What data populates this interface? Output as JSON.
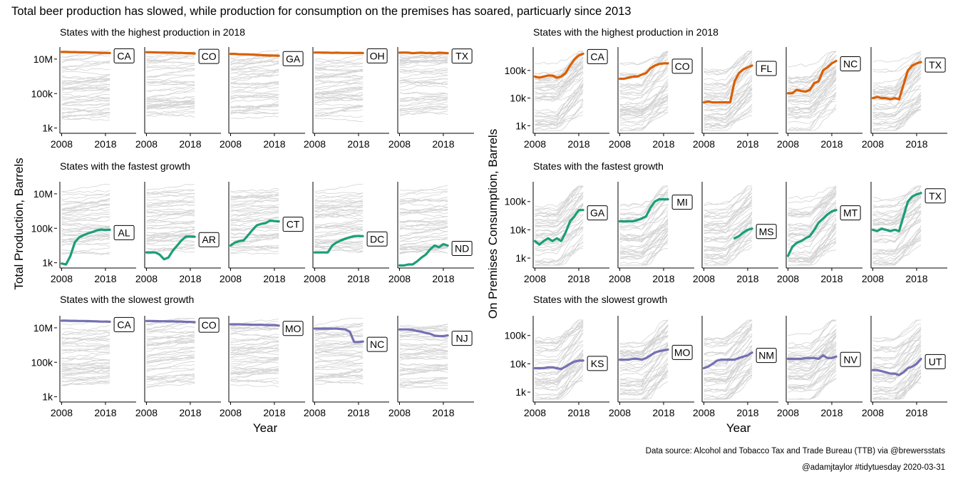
{
  "title": "Total beer production has slowed, while production for consumption on the premises has soared, particuarly since 2013",
  "caption": {
    "line1": "Data source: Alcohol and Tobacco Tax and Trade Bureau (TTB) via @brewersstats",
    "line2": "@adamjtaylor #tidytuesday 2020-03-31"
  },
  "colors": {
    "highest": "#d95f02",
    "fastest": "#1b9e77",
    "slowest": "#7570b3",
    "background_lines": "#d3d3d3"
  },
  "chart_data": [
    {
      "type": "line",
      "panel": "left",
      "ylabel": "Total Production, Barrels",
      "xlabel": "Year",
      "scale": "log10",
      "x_ticks": [
        "2008",
        "2018"
      ],
      "x": [
        2008,
        2009,
        2010,
        2011,
        2012,
        2013,
        2014,
        2015,
        2016,
        2017,
        2018,
        2019
      ],
      "rows": [
        {
          "title": "States with the highest production in 2018",
          "y_ticks": [
            "10M",
            "100k",
            "1k"
          ],
          "y_tick_values": [
            10000000,
            100000,
            1000
          ],
          "ylim": [
            600,
            50000000
          ],
          "group": "highest",
          "series": [
            {
              "name": "CA",
              "values": [
                26000000,
                26000000,
                25500000,
                25500000,
                25000000,
                25000000,
                24500000,
                24000000,
                23500000,
                23000000,
                23000000,
                22500000
              ]
            },
            {
              "name": "CO",
              "values": [
                25000000,
                25000000,
                24500000,
                24000000,
                24000000,
                23500000,
                23500000,
                23000000,
                23000000,
                22000000,
                22000000,
                21000000
              ]
            },
            {
              "name": "GA",
              "values": [
                20000000,
                20000000,
                19000000,
                19000000,
                18500000,
                18000000,
                17500000,
                17000000,
                16500000,
                16000000,
                16000000,
                15500000
              ]
            },
            {
              "name": "OH",
              "values": [
                24000000,
                24000000,
                23500000,
                23500000,
                23000000,
                23500000,
                23000000,
                23000000,
                23000000,
                22500000,
                23000000,
                22500000
              ]
            },
            {
              "name": "TX",
              "values": [
                23500000,
                24000000,
                23500000,
                22000000,
                23000000,
                23500000,
                22500000,
                23000000,
                22000000,
                23500000,
                23000000,
                22000000
              ]
            }
          ]
        },
        {
          "title": "States with the fastest growth",
          "y_ticks": [
            "10M",
            "100k",
            "1k"
          ],
          "y_tick_values": [
            10000000,
            100000,
            1000
          ],
          "ylim": [
            600,
            50000000
          ],
          "group": "fastest",
          "series": [
            {
              "name": "AL",
              "values": [
                900,
                800,
                2500,
                15000,
                30000,
                40000,
                50000,
                60000,
                75000,
                85000,
                80000,
                82000
              ]
            },
            {
              "name": "AR",
              "values": [
                4000,
                4000,
                4000,
                3000,
                1600,
                2000,
                5000,
                10000,
                20000,
                33000,
                33000,
                32000
              ]
            },
            {
              "name": "CT",
              "values": [
                10000,
                15000,
                18000,
                20000,
                40000,
                80000,
                150000,
                180000,
                200000,
                280000,
                260000,
                250000
              ]
            },
            {
              "name": "DC",
              "values": [
                4000,
                4000,
                4000,
                4000,
                10000,
                15000,
                20000,
                25000,
                30000,
                35000,
                36000,
                35000
              ]
            },
            {
              "name": "ND",
              "values": [
                700,
                700,
                800,
                800,
                1200,
                2000,
                3000,
                6000,
                10000,
                8000,
                12000,
                10000
              ]
            }
          ]
        },
        {
          "title": "States with the slowest growth",
          "y_ticks": [
            "10M",
            "100k",
            "1k"
          ],
          "y_tick_values": [
            10000000,
            100000,
            1000
          ],
          "ylim": [
            600,
            50000000
          ],
          "group": "slowest",
          "series": [
            {
              "name": "CA",
              "values": [
                26000000,
                26000000,
                25500000,
                25500000,
                25000000,
                25000000,
                24500000,
                24000000,
                23500000,
                23000000,
                23000000,
                22500000
              ]
            },
            {
              "name": "CO",
              "values": [
                25000000,
                25000000,
                24500000,
                24000000,
                24000000,
                23500000,
                23500000,
                23000000,
                23000000,
                22000000,
                22000000,
                21000000
              ]
            },
            {
              "name": "MO",
              "values": [
                16000000,
                16000000,
                16000000,
                15500000,
                15500000,
                15000000,
                15000000,
                15000000,
                14500000,
                14500000,
                14500000,
                13500000
              ]
            },
            {
              "name": "NC",
              "values": [
                9000000,
                9000000,
                9000000,
                9000000,
                9000000,
                9000000,
                8500000,
                8000000,
                6000000,
                1500000,
                1500000,
                1600000
              ]
            },
            {
              "name": "NJ",
              "values": [
                8000000,
                8000000,
                8000000,
                7500000,
                6500000,
                6000000,
                5000000,
                4500000,
                3500000,
                3300000,
                3300000,
                3600000
              ]
            }
          ]
        }
      ]
    },
    {
      "type": "line",
      "panel": "right",
      "ylabel": "On Premises Consumption, Barrels",
      "xlabel": "Year",
      "scale": "log10",
      "x_ticks": [
        "2008",
        "2018"
      ],
      "x": [
        2008,
        2009,
        2010,
        2011,
        2012,
        2013,
        2014,
        2015,
        2016,
        2017,
        2018,
        2019
      ],
      "rows": [
        {
          "title": "States with the highest production in 2018",
          "y_ticks": [
            "100k",
            "10k",
            "1k"
          ],
          "y_tick_values": [
            100000,
            10000,
            1000
          ],
          "ylim": [
            600,
            700000
          ],
          "group": "highest",
          "series": [
            {
              "name": "CA",
              "values": [
                60000,
                55000,
                60000,
                65000,
                65000,
                55000,
                60000,
                80000,
                150000,
                250000,
                350000,
                400000
              ]
            },
            {
              "name": "CO",
              "values": [
                50000,
                50000,
                55000,
                60000,
                60000,
                70000,
                80000,
                120000,
                150000,
                170000,
                180000,
                180000
              ]
            },
            {
              "name": "FL",
              "values": [
                7000,
                7500,
                7000,
                7000,
                7000,
                7000,
                7000,
                40000,
                80000,
                110000,
                130000,
                150000
              ]
            },
            {
              "name": "NC",
              "values": [
                15000,
                15000,
                20000,
                18000,
                17000,
                20000,
                35000,
                40000,
                100000,
                130000,
                180000,
                220000
              ]
            },
            {
              "name": "TX",
              "values": [
                10000,
                11000,
                10000,
                10000,
                9000,
                10000,
                9000,
                30000,
                100000,
                150000,
                180000,
                200000
              ]
            }
          ]
        },
        {
          "title": "States with the fastest growth",
          "y_ticks": [
            "100k",
            "10k",
            "1k"
          ],
          "y_tick_values": [
            100000,
            10000,
            1000
          ],
          "ylim": [
            500,
            500000
          ],
          "group": "fastest",
          "series": [
            {
              "name": "GA",
              "values": [
                4000,
                3000,
                4000,
                5000,
                4000,
                5000,
                4000,
                8000,
                20000,
                30000,
                50000,
                50000
              ]
            },
            {
              "name": "MI",
              "values": [
                20000,
                20000,
                20000,
                20000,
                22000,
                25000,
                30000,
                60000,
                100000,
                120000,
                120000,
                120000
              ]
            },
            {
              "name": "MS",
              "values": [
                null,
                null,
                null,
                null,
                null,
                null,
                null,
                5000,
                6000,
                8000,
                10000,
                11000
              ]
            },
            {
              "name": "MT",
              "values": [
                1200,
                2500,
                3500,
                4000,
                5000,
                6000,
                10000,
                18000,
                25000,
                35000,
                45000,
                50000
              ]
            },
            {
              "name": "TX",
              "values": [
                10000,
                9000,
                11000,
                10000,
                9000,
                10000,
                9000,
                30000,
                100000,
                150000,
                180000,
                200000
              ]
            }
          ]
        },
        {
          "title": "States with the slowest growth",
          "y_ticks": [
            "100k",
            "10k",
            "1k"
          ],
          "y_tick_values": [
            100000,
            10000,
            1000
          ],
          "ylim": [
            500,
            500000
          ],
          "group": "slowest",
          "series": [
            {
              "name": "KS",
              "values": [
                7000,
                7000,
                7000,
                7500,
                7500,
                7000,
                6500,
                8000,
                10000,
                12000,
                13000,
                13000
              ]
            },
            {
              "name": "MO",
              "values": [
                14000,
                14000,
                14000,
                15000,
                15000,
                14000,
                16000,
                20000,
                25000,
                28000,
                30000,
                32000
              ]
            },
            {
              "name": "NM",
              "values": [
                7000,
                8000,
                10000,
                13000,
                14000,
                14000,
                14000,
                14000,
                16000,
                18000,
                20000,
                25000
              ]
            },
            {
              "name": "NV",
              "values": [
                15000,
                15000,
                15000,
                15000,
                16000,
                16000,
                16000,
                15000,
                20000,
                16000,
                16000,
                18000
              ]
            },
            {
              "name": "UT",
              "values": [
                6000,
                6000,
                5500,
                5000,
                4500,
                4500,
                4000,
                5000,
                7000,
                8000,
                10000,
                15000
              ]
            }
          ]
        }
      ]
    }
  ]
}
